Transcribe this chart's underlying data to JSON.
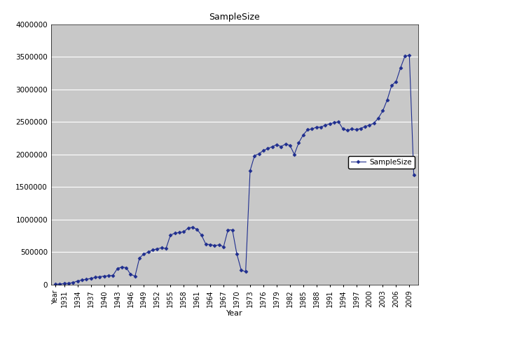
{
  "title": "SampleSize",
  "xlabel": "Year",
  "ylabel": "",
  "legend_label": "SampleSize",
  "background_color": "#c8c8c8",
  "line_color": "#1f2e8f",
  "marker": "D",
  "marker_size": 2.5,
  "ylim": [
    0,
    4000000
  ],
  "yticks": [
    0,
    500000,
    1000000,
    1500000,
    2000000,
    2500000,
    3000000,
    3500000,
    4000000
  ],
  "xlim_start": 1928,
  "xlim_end": 2011,
  "xticks": [
    1929,
    1931,
    1934,
    1937,
    1940,
    1943,
    1946,
    1949,
    1952,
    1955,
    1958,
    1961,
    1964,
    1967,
    1970,
    1973,
    1976,
    1979,
    1982,
    1985,
    1988,
    1991,
    1994,
    1997,
    2000,
    2003,
    2006,
    2009
  ],
  "xtick_labels": [
    "Year",
    "1931",
    "1934",
    "1937",
    "1940",
    "1943",
    "1946",
    "1949",
    "1952",
    "1955",
    "1958",
    "1961",
    "1964",
    "1967",
    "1970",
    "1973",
    "1976",
    "1979",
    "1982",
    "1985",
    "1988",
    "1991",
    "1994",
    "1997",
    "2000",
    "2003",
    "2006",
    "2009"
  ],
  "data": {
    "1929": 5000,
    "1930": 8000,
    "1931": 15000,
    "1932": 20000,
    "1933": 30000,
    "1934": 55000,
    "1935": 70000,
    "1936": 80000,
    "1937": 95000,
    "1938": 110000,
    "1939": 120000,
    "1940": 130000,
    "1941": 135000,
    "1942": 140000,
    "1943": 245000,
    "1944": 270000,
    "1945": 260000,
    "1946": 155000,
    "1947": 130000,
    "1948": 410000,
    "1949": 470000,
    "1950": 500000,
    "1951": 530000,
    "1952": 550000,
    "1953": 565000,
    "1954": 555000,
    "1955": 760000,
    "1956": 790000,
    "1957": 800000,
    "1958": 810000,
    "1959": 870000,
    "1960": 880000,
    "1961": 850000,
    "1962": 760000,
    "1963": 620000,
    "1964": 615000,
    "1965": 600000,
    "1966": 610000,
    "1967": 580000,
    "1968": 840000,
    "1969": 840000,
    "1970": 470000,
    "1971": 220000,
    "1972": 200000,
    "1973": 1750000,
    "1974": 1980000,
    "1975": 2010000,
    "1976": 2060000,
    "1977": 2090000,
    "1978": 2120000,
    "1979": 2150000,
    "1980": 2120000,
    "1981": 2160000,
    "1982": 2140000,
    "1983": 2000000,
    "1984": 2180000,
    "1985": 2300000,
    "1986": 2380000,
    "1987": 2390000,
    "1988": 2420000,
    "1989": 2420000,
    "1990": 2450000,
    "1991": 2470000,
    "1992": 2490000,
    "1993": 2500000,
    "1994": 2390000,
    "1995": 2370000,
    "1996": 2390000,
    "1997": 2380000,
    "1998": 2400000,
    "1999": 2430000,
    "2000": 2450000,
    "2001": 2480000,
    "2002": 2560000,
    "2003": 2670000,
    "2004": 2840000,
    "2005": 3060000,
    "2006": 3120000,
    "2007": 3330000,
    "2008": 3510000,
    "2009": 3520000,
    "2010": 1680000
  }
}
